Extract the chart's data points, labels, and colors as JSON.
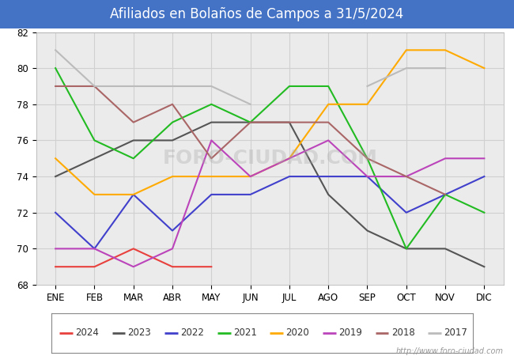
{
  "title": "Afiliados en Bolaños de Campos a 31/5/2024",
  "ylim": [
    68,
    82
  ],
  "yticks": [
    68,
    70,
    72,
    74,
    76,
    78,
    80,
    82
  ],
  "months": [
    "ENE",
    "FEB",
    "MAR",
    "ABR",
    "MAY",
    "JUN",
    "JUL",
    "AGO",
    "SEP",
    "OCT",
    "NOV",
    "DIC"
  ],
  "series": {
    "2024": {
      "color": "#e8413d",
      "data": [
        69,
        69,
        70,
        69,
        69,
        null,
        null,
        null,
        null,
        null,
        null,
        null
      ]
    },
    "2023": {
      "color": "#555555",
      "data": [
        74,
        75,
        76,
        76,
        77,
        77,
        77,
        73,
        71,
        70,
        70,
        69
      ]
    },
    "2022": {
      "color": "#4040cc",
      "data": [
        72,
        70,
        73,
        71,
        73,
        73,
        74,
        74,
        74,
        72,
        73,
        74
      ]
    },
    "2021": {
      "color": "#22bb22",
      "data": [
        80,
        76,
        75,
        77,
        78,
        77,
        79,
        79,
        75,
        70,
        73,
        72
      ]
    },
    "2020": {
      "color": "#ffaa00",
      "data": [
        75,
        73,
        73,
        74,
        74,
        74,
        75,
        78,
        78,
        81,
        81,
        80
      ]
    },
    "2019": {
      "color": "#bb44bb",
      "data": [
        70,
        70,
        69,
        70,
        76,
        74,
        75,
        76,
        74,
        74,
        75,
        75
      ]
    },
    "2018": {
      "color": "#aa6666",
      "data": [
        79,
        79,
        77,
        78,
        75,
        77,
        77,
        77,
        75,
        74,
        73,
        null
      ]
    },
    "2017": {
      "color": "#bbbbbb",
      "data": [
        81,
        79,
        79,
        79,
        79,
        78,
        null,
        null,
        79,
        80,
        80,
        null
      ]
    }
  },
  "legend_order": [
    "2024",
    "2023",
    "2022",
    "2021",
    "2020",
    "2019",
    "2018",
    "2017"
  ],
  "header_color": "#4472c4",
  "plot_bg": "#ebebeb",
  "grid_color": "#d0d0d0",
  "watermark": "http://www.foro-ciudad.com"
}
